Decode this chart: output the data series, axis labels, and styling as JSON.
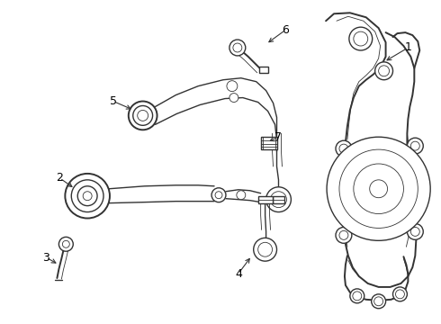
{
  "bg_color": "#ffffff",
  "line_color": "#333333",
  "label_color": "#000000",
  "lw_thin": 0.6,
  "lw_med": 1.0,
  "lw_thick": 1.4,
  "label_configs": {
    "1": [
      455,
      52,
      428,
      68
    ],
    "2": [
      65,
      198,
      82,
      210
    ],
    "3": [
      50,
      287,
      64,
      295
    ],
    "4": [
      265,
      305,
      280,
      285
    ],
    "5": [
      125,
      112,
      148,
      122
    ],
    "6": [
      318,
      32,
      296,
      48
    ],
    "7": [
      310,
      152,
      297,
      158
    ]
  }
}
